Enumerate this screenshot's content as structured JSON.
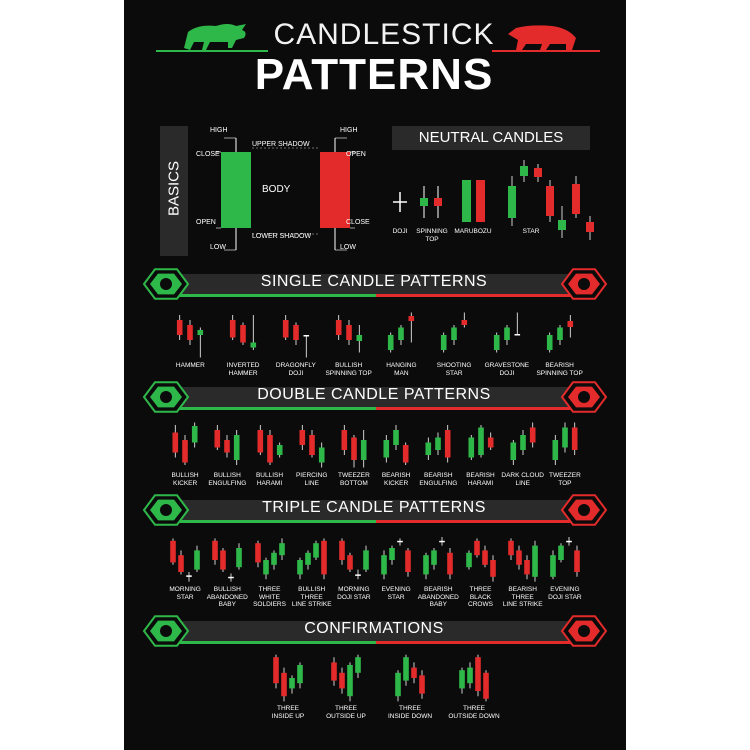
{
  "header": {
    "title_line1": "CANDLESTICK",
    "title_line2": "PATTERNS"
  },
  "colors": {
    "bull": "#2fb84a",
    "bear": "#e32b2b",
    "background": "#0b0b0b",
    "bar": "#2a2a2a"
  },
  "basics": {
    "heading": "BASICS",
    "body": "BODY",
    "bull_labels": {
      "high": "HIGH",
      "close": "CLOSE",
      "open": "OPEN",
      "low": "LOW"
    },
    "bear_labels": {
      "high": "HIGH",
      "open": "OPEN",
      "close": "CLOSE",
      "low": "LOW"
    },
    "upper_shadow": "UPPER SHADOW",
    "lower_shadow": "LOWER SHADOW"
  },
  "neutral": {
    "heading": "NEUTRAL CANDLES",
    "items": [
      [
        "DOJI"
      ],
      [
        "SPINNING",
        "TOP"
      ],
      [
        "MARUBOZU"
      ],
      [
        "STAR"
      ]
    ]
  },
  "sections": {
    "single": {
      "title": "SINGLE CANDLE PATTERNS"
    },
    "double": {
      "title": "DOUBLE CANDLE PATTERNS"
    },
    "triple": {
      "title": "TRIPLE CANDLE PATTERNS"
    },
    "confirm": {
      "title": "CONFIRMATIONS"
    }
  },
  "single_patterns": [
    [
      "HAMMER"
    ],
    [
      "INVERTED",
      "HAMMER"
    ],
    [
      "DRAGONFLY",
      "DOJI"
    ],
    [
      "BULLISH",
      "SPINNING TOP"
    ],
    [
      "HANGING",
      "MAN"
    ],
    [
      "SHOOTING",
      "STAR"
    ],
    [
      "GRAVESTONE",
      "DOJI"
    ],
    [
      "BEARISH",
      "SPINNING TOP"
    ]
  ],
  "double_patterns": [
    [
      "BULLISH",
      "KICKER"
    ],
    [
      "BULLISH",
      "ENGULFING"
    ],
    [
      "BULLISH",
      "HARAMI"
    ],
    [
      "PIERCING",
      "LINE"
    ],
    [
      "TWEEZER",
      "BOTTOM"
    ],
    [
      "BEARISH",
      "KICKER"
    ],
    [
      "BEARISH",
      "ENGULFING"
    ],
    [
      "BEARISH",
      "HARAMI"
    ],
    [
      "DARK CLOUD",
      "LINE"
    ],
    [
      "TWEEZER",
      "TOP"
    ]
  ],
  "triple_patterns": [
    [
      "MORNING",
      "STAR"
    ],
    [
      "BULLISH",
      "ABANDONED",
      "BABY"
    ],
    [
      "THREE",
      "WHITE",
      "SOLDIERS"
    ],
    [
      "BULLISH",
      "THREE",
      "LINE STRIKE"
    ],
    [
      "MORNING",
      "DOJI STAR"
    ],
    [
      "EVENING",
      "STAR"
    ],
    [
      "BEARISH",
      "ABANDONED",
      "BABY"
    ],
    [
      "THREE",
      "BLACK",
      "CROWS"
    ],
    [
      "BEARISH",
      "THREE",
      "LINE STRIKE"
    ],
    [
      "EVENING",
      "DOJI STAR"
    ]
  ],
  "confirmations": [
    [
      "THREE",
      "INSIDE UP"
    ],
    [
      "THREE",
      "OUTSIDE UP"
    ],
    [
      "THREE",
      "INSIDE DOWN"
    ],
    [
      "THREE",
      "OUTSIDE DOWN"
    ]
  ]
}
